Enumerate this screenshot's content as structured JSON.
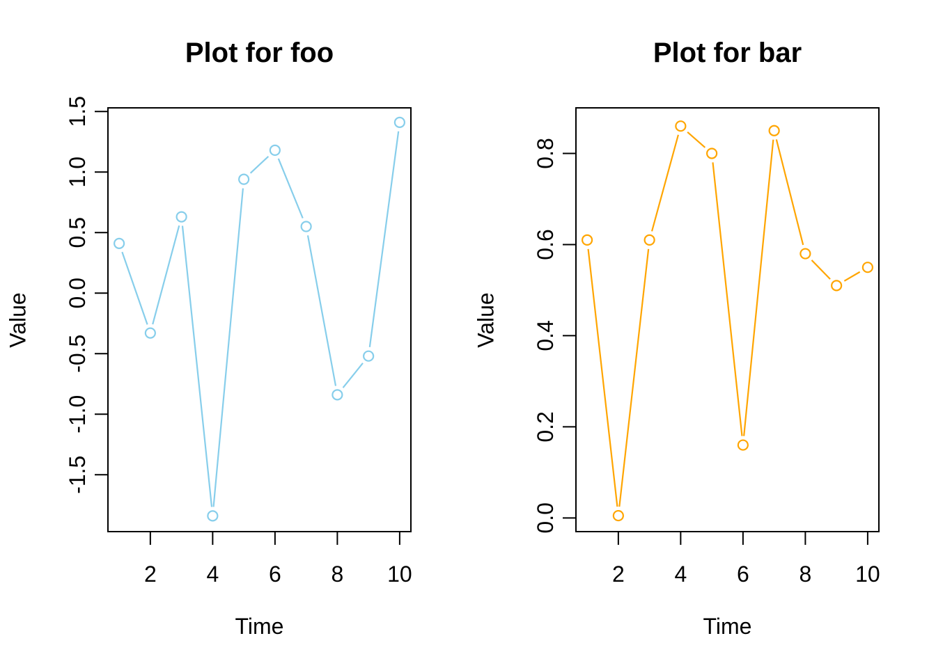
{
  "figure": {
    "background": "#FFFFFF",
    "axis_color": "#000000",
    "text_color": "#000000"
  },
  "chart_data": [
    {
      "type": "line",
      "title": "Plot for foo",
      "xlabel": "Time",
      "ylabel": "Value",
      "xlim": [
        0.64,
        10.36
      ],
      "ylim": [
        -1.97,
        1.53
      ],
      "xticks": [
        2,
        4,
        6,
        8,
        10
      ],
      "xtick_labels": [
        "2",
        "4",
        "6",
        "8",
        "10"
      ],
      "yticks": [
        -1.5,
        -1.0,
        -0.5,
        0.0,
        0.5,
        1.0,
        1.5
      ],
      "ytick_labels": [
        "-1.5",
        "-1.0",
        "-0.5",
        "0.0",
        "0.5",
        "1.0",
        "1.5"
      ],
      "grid": false,
      "legend": "none",
      "marker": "open-circle",
      "series": [
        {
          "name": "foo",
          "color": "#87CEEB",
          "x": [
            1,
            2,
            3,
            4,
            5,
            6,
            7,
            8,
            9,
            10
          ],
          "y": [
            0.41,
            -0.33,
            0.63,
            -1.84,
            0.94,
            1.18,
            0.55,
            -0.84,
            -0.52,
            1.41
          ]
        }
      ]
    },
    {
      "type": "line",
      "title": "Plot for bar",
      "xlabel": "Time",
      "ylabel": "Value",
      "xlim": [
        0.64,
        10.36
      ],
      "ylim": [
        -0.03,
        0.9
      ],
      "xticks": [
        2,
        4,
        6,
        8,
        10
      ],
      "xtick_labels": [
        "2",
        "4",
        "6",
        "8",
        "10"
      ],
      "yticks": [
        0.0,
        0.2,
        0.4,
        0.6,
        0.8
      ],
      "ytick_labels": [
        "0.0",
        "0.2",
        "0.4",
        "0.6",
        "0.8"
      ],
      "grid": false,
      "legend": "none",
      "marker": "open-circle",
      "series": [
        {
          "name": "bar",
          "color": "#FFA500",
          "x": [
            1,
            2,
            3,
            4,
            5,
            6,
            7,
            8,
            9,
            10
          ],
          "y": [
            0.61,
            0.005,
            0.61,
            0.86,
            0.8,
            0.16,
            0.85,
            0.58,
            0.51,
            0.55
          ]
        }
      ]
    }
  ]
}
